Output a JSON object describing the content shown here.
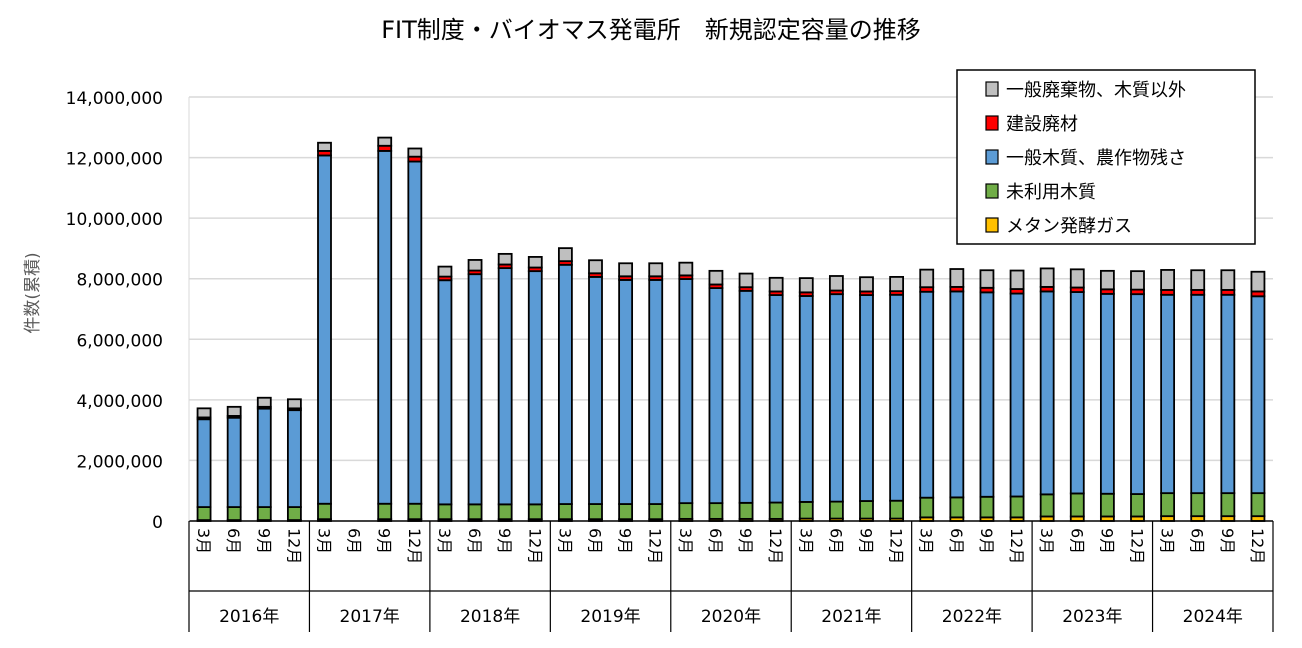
{
  "chart_data": {
    "type": "bar",
    "stacked": true,
    "title": "FIT制度・バイオマス発電所　新規認定容量の推移",
    "ylabel": "件数(累積)",
    "ylim": [
      0,
      14000000
    ],
    "yticks": [
      0,
      2000000,
      4000000,
      6000000,
      8000000,
      10000000,
      12000000,
      14000000
    ],
    "ytick_labels": [
      "0",
      "2,000,000",
      "4,000,000",
      "6,000,000",
      "8,000,000",
      "10,000,000",
      "12,000,000",
      "14,000,000"
    ],
    "grid": true,
    "legend_position": "top-right",
    "years": [
      "2016年",
      "2017年",
      "2018年",
      "2019年",
      "2020年",
      "2021年",
      "2022年",
      "2023年",
      "2024年"
    ],
    "months": [
      "3月",
      "6月",
      "9月",
      "12月"
    ],
    "series": [
      {
        "name": "メタン発酵ガス",
        "color": "#FFC000",
        "values": [
          30000,
          30000,
          30000,
          30000,
          60000,
          0,
          60000,
          60000,
          60000,
          60000,
          60000,
          60000,
          60000,
          60000,
          60000,
          60000,
          70000,
          70000,
          70000,
          70000,
          80000,
          80000,
          80000,
          80000,
          120000,
          120000,
          120000,
          120000,
          150000,
          150000,
          150000,
          150000,
          160000,
          160000,
          160000,
          160000
        ]
      },
      {
        "name": "未利用木質",
        "color": "#70AD47",
        "values": [
          430000,
          430000,
          430000,
          430000,
          510000,
          0,
          510000,
          510000,
          490000,
          490000,
          490000,
          490000,
          500000,
          500000,
          500000,
          500000,
          520000,
          520000,
          530000,
          540000,
          550000,
          560000,
          580000,
          590000,
          650000,
          660000,
          680000,
          690000,
          730000,
          760000,
          750000,
          740000,
          760000,
          760000,
          760000,
          760000
        ]
      },
      {
        "name": "一般木質、農作物残さ",
        "color": "#5B9BD5",
        "values": [
          2900000,
          2950000,
          3250000,
          3200000,
          11500000,
          0,
          11650000,
          11300000,
          7400000,
          7600000,
          7800000,
          7700000,
          7900000,
          7500000,
          7400000,
          7400000,
          7400000,
          7100000,
          7000000,
          6850000,
          6800000,
          6850000,
          6800000,
          6800000,
          6800000,
          6800000,
          6750000,
          6700000,
          6700000,
          6650000,
          6600000,
          6600000,
          6550000,
          6550000,
          6550000,
          6500000
        ]
      },
      {
        "name": "建設廃材",
        "color": "#FF0000",
        "values": [
          60000,
          60000,
          60000,
          60000,
          150000,
          0,
          170000,
          160000,
          120000,
          120000,
          120000,
          120000,
          120000,
          120000,
          120000,
          120000,
          120000,
          120000,
          120000,
          120000,
          120000,
          120000,
          120000,
          120000,
          150000,
          150000,
          150000,
          150000,
          150000,
          150000,
          150000,
          150000,
          160000,
          160000,
          160000,
          160000
        ]
      },
      {
        "name": "一般廃棄物、木質以外",
        "color": "#BFBFBF",
        "values": [
          300000,
          300000,
          300000,
          300000,
          270000,
          0,
          270000,
          270000,
          330000,
          350000,
          350000,
          350000,
          430000,
          430000,
          430000,
          430000,
          420000,
          450000,
          450000,
          450000,
          470000,
          480000,
          470000,
          470000,
          580000,
          590000,
          580000,
          610000,
          610000,
          600000,
          610000,
          610000,
          660000,
          650000,
          650000,
          650000
        ]
      }
    ]
  }
}
